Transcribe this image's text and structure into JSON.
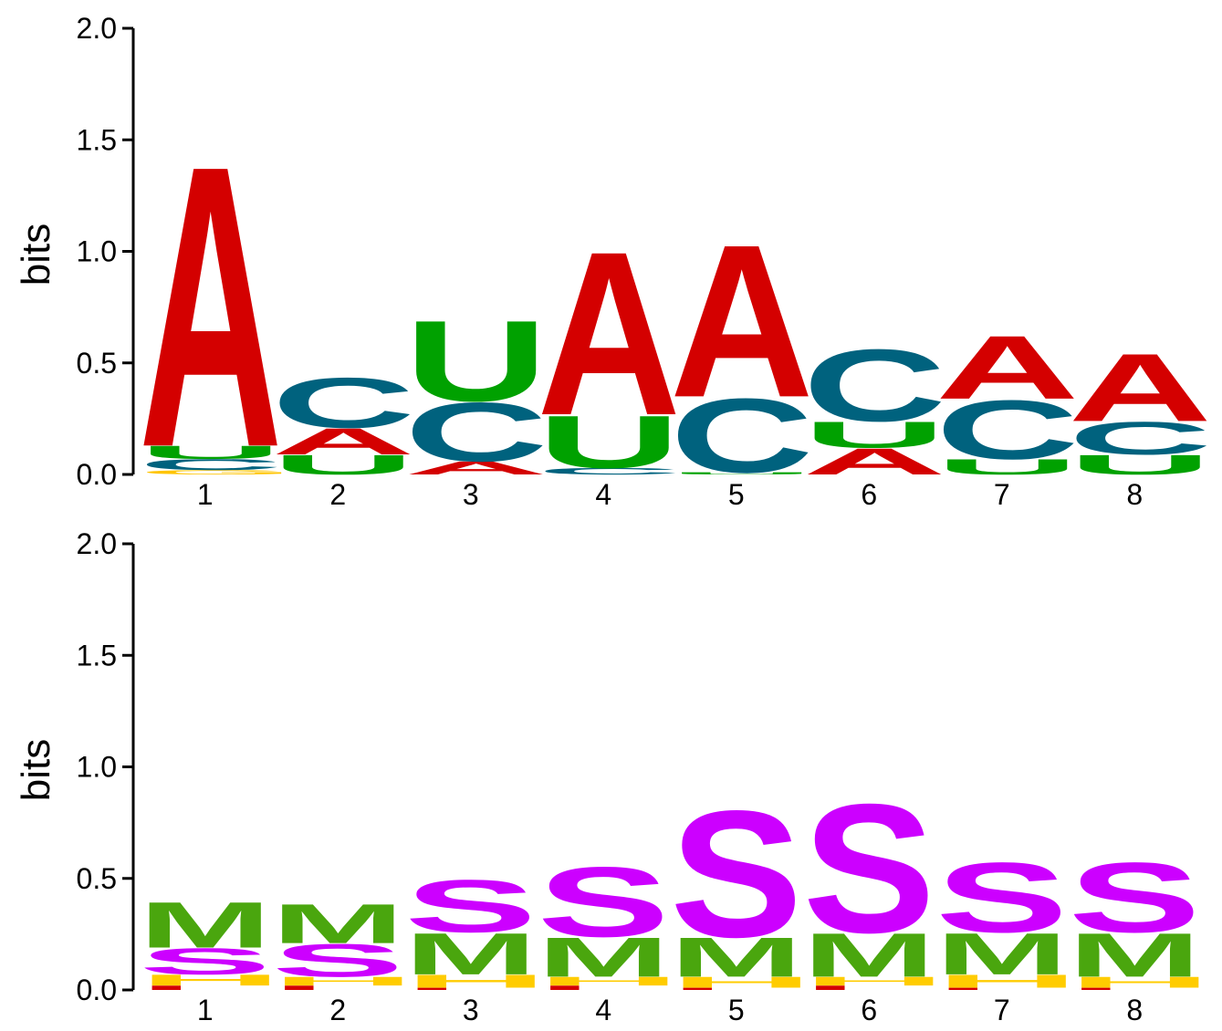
{
  "colors": {
    "A": "#d40000",
    "C": "#00627e",
    "U": "#00a100",
    "G": "#ffc400",
    "S": "#cc00ff",
    "M": "#4aa60e",
    "H": "#ffcc00",
    "I": "#d40000",
    "axis": "#000000"
  },
  "chart_data": [
    {
      "type": "sequence-logo",
      "ylabel": "bits",
      "ylim": [
        0,
        2
      ],
      "yticks": [
        "0.0",
        "0.5",
        "1.0",
        "1.5",
        "2.0"
      ],
      "positions": [
        "1",
        "2",
        "3",
        "4",
        "5",
        "6",
        "7",
        "8"
      ],
      "stacks": [
        [
          {
            "letter": "G",
            "value": 0.02
          },
          {
            "letter": "C",
            "value": 0.05
          },
          {
            "letter": "U",
            "value": 0.06
          },
          {
            "letter": "A",
            "value": 1.29
          }
        ],
        [
          {
            "letter": "U",
            "value": 0.09
          },
          {
            "letter": "A",
            "value": 0.12
          },
          {
            "letter": "C",
            "value": 0.23
          }
        ],
        [
          {
            "letter": "A",
            "value": 0.06
          },
          {
            "letter": "C",
            "value": 0.27
          },
          {
            "letter": "U",
            "value": 0.37
          }
        ],
        [
          {
            "letter": "C",
            "value": 0.03
          },
          {
            "letter": "U",
            "value": 0.24
          },
          {
            "letter": "A",
            "value": 0.75
          }
        ],
        [
          {
            "letter": "U",
            "value": 0.01
          },
          {
            "letter": "C",
            "value": 0.34
          },
          {
            "letter": "A",
            "value": 0.7
          }
        ],
        [
          {
            "letter": "A",
            "value": 0.12
          },
          {
            "letter": "U",
            "value": 0.12
          },
          {
            "letter": "C",
            "value": 0.33
          }
        ],
        [
          {
            "letter": "U",
            "value": 0.07
          },
          {
            "letter": "C",
            "value": 0.27
          },
          {
            "letter": "A",
            "value": 0.29
          }
        ],
        [
          {
            "letter": "U",
            "value": 0.09
          },
          {
            "letter": "C",
            "value": 0.15
          },
          {
            "letter": "A",
            "value": 0.31
          }
        ]
      ]
    },
    {
      "type": "sequence-logo",
      "ylabel": "bits",
      "ylim": [
        0,
        2
      ],
      "yticks": [
        "0.0",
        "0.5",
        "1.0",
        "1.5",
        "2.0"
      ],
      "positions": [
        "1",
        "2",
        "3",
        "4",
        "5",
        "6",
        "7",
        "8"
      ],
      "stacks": [
        [
          {
            "letter": "I",
            "value": 0.02
          },
          {
            "letter": "H",
            "value": 0.05
          },
          {
            "letter": "S",
            "value": 0.12
          },
          {
            "letter": "M",
            "value": 0.21
          }
        ],
        [
          {
            "letter": "I",
            "value": 0.02
          },
          {
            "letter": "H",
            "value": 0.04
          },
          {
            "letter": "S",
            "value": 0.15
          },
          {
            "letter": "M",
            "value": 0.18
          }
        ],
        [
          {
            "letter": "I",
            "value": 0.01
          },
          {
            "letter": "H",
            "value": 0.06
          },
          {
            "letter": "M",
            "value": 0.19
          },
          {
            "letter": "S",
            "value": 0.24
          }
        ],
        [
          {
            "letter": "I",
            "value": 0.02
          },
          {
            "letter": "H",
            "value": 0.04
          },
          {
            "letter": "M",
            "value": 0.18
          },
          {
            "letter": "S",
            "value": 0.32
          }
        ],
        [
          {
            "letter": "I",
            "value": 0.01
          },
          {
            "letter": "H",
            "value": 0.05
          },
          {
            "letter": "M",
            "value": 0.18
          },
          {
            "letter": "S",
            "value": 0.58
          }
        ],
        [
          {
            "letter": "I",
            "value": 0.02
          },
          {
            "letter": "H",
            "value": 0.04
          },
          {
            "letter": "M",
            "value": 0.2
          },
          {
            "letter": "S",
            "value": 0.59
          }
        ],
        [
          {
            "letter": "I",
            "value": 0.01
          },
          {
            "letter": "H",
            "value": 0.06
          },
          {
            "letter": "M",
            "value": 0.19
          },
          {
            "letter": "S",
            "value": 0.32
          }
        ],
        [
          {
            "letter": "I",
            "value": 0.01
          },
          {
            "letter": "H",
            "value": 0.05
          },
          {
            "letter": "M",
            "value": 0.2
          },
          {
            "letter": "S",
            "value": 0.32
          }
        ]
      ]
    }
  ]
}
